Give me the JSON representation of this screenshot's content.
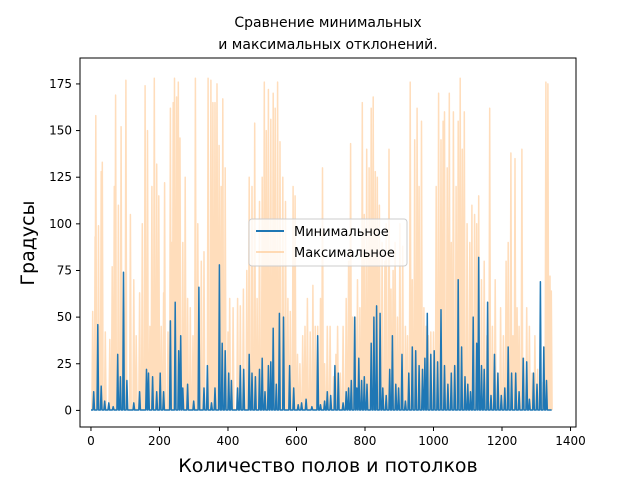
{
  "chart_data": {
    "type": "line",
    "title_line1": "Сравнение минимальных",
    "title_line2": "и максимальных отклонений.",
    "xlabel": "Количество полов и потолков",
    "ylabel": "Градусы",
    "xlim": [
      -32,
      1416
    ],
    "ylim": [
      -8.9,
      188.9
    ],
    "xticks": [
      0,
      200,
      400,
      600,
      800,
      1000,
      1200,
      1400
    ],
    "yticks": [
      0,
      25,
      50,
      75,
      100,
      125,
      150,
      175
    ],
    "legend_position": "center",
    "series": [
      {
        "name": "Минимальное",
        "color": "#1f77b4",
        "alpha": 1.0
      },
      {
        "name": "Максимальное",
        "color": "#ffbb78",
        "alpha": 0.5
      }
    ],
    "max_peaks": [
      [
        5,
        53
      ],
      [
        12,
        93
      ],
      [
        14,
        158
      ],
      [
        22,
        99
      ],
      [
        25,
        45
      ],
      [
        30,
        128
      ],
      [
        33,
        133
      ],
      [
        42,
        42
      ],
      [
        55,
        38
      ],
      [
        62,
        77
      ],
      [
        68,
        120
      ],
      [
        72,
        169
      ],
      [
        80,
        110
      ],
      [
        88,
        152
      ],
      [
        95,
        35
      ],
      [
        102,
        177
      ],
      [
        115,
        105
      ],
      [
        125,
        70
      ],
      [
        132,
        40
      ],
      [
        142,
        63
      ],
      [
        150,
        100
      ],
      [
        158,
        174
      ],
      [
        165,
        150
      ],
      [
        172,
        45
      ],
      [
        178,
        120
      ],
      [
        185,
        178
      ],
      [
        192,
        132
      ],
      [
        198,
        115
      ],
      [
        205,
        45
      ],
      [
        212,
        63
      ],
      [
        215,
        122
      ],
      [
        225,
        42
      ],
      [
        232,
        162
      ],
      [
        236,
        90
      ],
      [
        240,
        165
      ],
      [
        244,
        178
      ],
      [
        250,
        168
      ],
      [
        255,
        176
      ],
      [
        260,
        146
      ],
      [
        268,
        90
      ],
      [
        275,
        125
      ],
      [
        282,
        60
      ],
      [
        290,
        55
      ],
      [
        298,
        40
      ],
      [
        305,
        178
      ],
      [
        312,
        100
      ],
      [
        322,
        80
      ],
      [
        330,
        85
      ],
      [
        342,
        178
      ],
      [
        350,
        177
      ],
      [
        356,
        165
      ],
      [
        362,
        165
      ],
      [
        368,
        175
      ],
      [
        374,
        142
      ],
      [
        380,
        120
      ],
      [
        385,
        167
      ],
      [
        392,
        130
      ],
      [
        400,
        42
      ],
      [
        405,
        60
      ],
      [
        415,
        55
      ],
      [
        428,
        60
      ],
      [
        436,
        56
      ],
      [
        445,
        65
      ],
      [
        455,
        75
      ],
      [
        462,
        125
      ],
      [
        470,
        120
      ],
      [
        478,
        154
      ],
      [
        485,
        60
      ],
      [
        492,
        112
      ],
      [
        500,
        125
      ],
      [
        506,
        176
      ],
      [
        512,
        150
      ],
      [
        518,
        172
      ],
      [
        525,
        156
      ],
      [
        532,
        170
      ],
      [
        538,
        162
      ],
      [
        545,
        176
      ],
      [
        552,
        144
      ],
      [
        560,
        125
      ],
      [
        568,
        112
      ],
      [
        575,
        60
      ],
      [
        582,
        53
      ],
      [
        590,
        120
      ],
      [
        596,
        115
      ],
      [
        603,
        30
      ],
      [
        610,
        25
      ],
      [
        618,
        40
      ],
      [
        625,
        45
      ],
      [
        632,
        60
      ],
      [
        640,
        42
      ],
      [
        648,
        67
      ],
      [
        655,
        45
      ],
      [
        662,
        45
      ],
      [
        670,
        60
      ],
      [
        676,
        130
      ],
      [
        682,
        25
      ],
      [
        690,
        45
      ],
      [
        698,
        45
      ],
      [
        708,
        18
      ],
      [
        715,
        30
      ],
      [
        720,
        45
      ],
      [
        728,
        20
      ],
      [
        736,
        45
      ],
      [
        745,
        60
      ],
      [
        752,
        80
      ],
      [
        758,
        143
      ],
      [
        764,
        50
      ],
      [
        772,
        50
      ],
      [
        778,
        70
      ],
      [
        785,
        55
      ],
      [
        792,
        165
      ],
      [
        798,
        105
      ],
      [
        805,
        140
      ],
      [
        812,
        130
      ],
      [
        818,
        162
      ],
      [
        824,
        168
      ],
      [
        830,
        128
      ],
      [
        836,
        125
      ],
      [
        842,
        110
      ],
      [
        850,
        90
      ],
      [
        858,
        80
      ],
      [
        862,
        100
      ],
      [
        870,
        140
      ],
      [
        876,
        65
      ],
      [
        882,
        75
      ],
      [
        888,
        90
      ],
      [
        895,
        50
      ],
      [
        902,
        100
      ],
      [
        910,
        88
      ],
      [
        918,
        45
      ],
      [
        924,
        40
      ],
      [
        932,
        176
      ],
      [
        938,
        70
      ],
      [
        945,
        145
      ],
      [
        952,
        162
      ],
      [
        958,
        120
      ],
      [
        965,
        155
      ],
      [
        972,
        55
      ],
      [
        978,
        45
      ],
      [
        985,
        40
      ],
      [
        992,
        42
      ],
      [
        1000,
        42
      ],
      [
        1008,
        120
      ],
      [
        1015,
        170
      ],
      [
        1022,
        145
      ],
      [
        1028,
        155
      ],
      [
        1032,
        160
      ],
      [
        1040,
        130
      ],
      [
        1046,
        170
      ],
      [
        1052,
        90
      ],
      [
        1058,
        160
      ],
      [
        1066,
        120
      ],
      [
        1072,
        155
      ],
      [
        1078,
        178
      ],
      [
        1084,
        140
      ],
      [
        1090,
        160
      ],
      [
        1098,
        100
      ],
      [
        1106,
        90
      ],
      [
        1112,
        110
      ],
      [
        1120,
        105
      ],
      [
        1126,
        100
      ],
      [
        1132,
        115
      ],
      [
        1140,
        70
      ],
      [
        1148,
        80
      ],
      [
        1156,
        40
      ],
      [
        1164,
        162
      ],
      [
        1172,
        45
      ],
      [
        1180,
        70
      ],
      [
        1188,
        20
      ],
      [
        1196,
        55
      ],
      [
        1204,
        40
      ],
      [
        1212,
        80
      ],
      [
        1218,
        90
      ],
      [
        1226,
        138
      ],
      [
        1232,
        40
      ],
      [
        1238,
        135
      ],
      [
        1244,
        55
      ],
      [
        1250,
        45
      ],
      [
        1258,
        140
      ],
      [
        1264,
        28
      ],
      [
        1272,
        55
      ],
      [
        1280,
        45
      ],
      [
        1288,
        20
      ],
      [
        1296,
        40
      ],
      [
        1304,
        22
      ],
      [
        1312,
        35
      ],
      [
        1320,
        15
      ],
      [
        1328,
        176
      ],
      [
        1334,
        175
      ],
      [
        1340,
        72
      ],
      [
        1344,
        64
      ]
    ],
    "min_peaks": [
      [
        8,
        10
      ],
      [
        20,
        46
      ],
      [
        30,
        13
      ],
      [
        40,
        5
      ],
      [
        52,
        4
      ],
      [
        65,
        2
      ],
      [
        78,
        30
      ],
      [
        86,
        18
      ],
      [
        95,
        74
      ],
      [
        105,
        16
      ],
      [
        125,
        4
      ],
      [
        142,
        10
      ],
      [
        162,
        22
      ],
      [
        168,
        20
      ],
      [
        180,
        18
      ],
      [
        192,
        10
      ],
      [
        202,
        20
      ],
      [
        212,
        10
      ],
      [
        232,
        48
      ],
      [
        246,
        58
      ],
      [
        256,
        32
      ],
      [
        262,
        40
      ],
      [
        268,
        12
      ],
      [
        282,
        14
      ],
      [
        300,
        5
      ],
      [
        315,
        66
      ],
      [
        330,
        12
      ],
      [
        340,
        24
      ],
      [
        352,
        4
      ],
      [
        362,
        12
      ],
      [
        375,
        78
      ],
      [
        383,
        36
      ],
      [
        392,
        32
      ],
      [
        402,
        20
      ],
      [
        410,
        16
      ],
      [
        428,
        12
      ],
      [
        436,
        24
      ],
      [
        446,
        22
      ],
      [
        462,
        30
      ],
      [
        470,
        20
      ],
      [
        480,
        18
      ],
      [
        492,
        22
      ],
      [
        500,
        28
      ],
      [
        508,
        10
      ],
      [
        518,
        24
      ],
      [
        525,
        26
      ],
      [
        532,
        44
      ],
      [
        541,
        14
      ],
      [
        550,
        52
      ],
      [
        562,
        50
      ],
      [
        580,
        24
      ],
      [
        592,
        12
      ],
      [
        605,
        3
      ],
      [
        615,
        4
      ],
      [
        628,
        6
      ],
      [
        645,
        2
      ],
      [
        662,
        40
      ],
      [
        670,
        3
      ],
      [
        682,
        5
      ],
      [
        690,
        10
      ],
      [
        700,
        8
      ],
      [
        712,
        24
      ],
      [
        722,
        20
      ],
      [
        736,
        4
      ],
      [
        745,
        10
      ],
      [
        752,
        12
      ],
      [
        760,
        16
      ],
      [
        770,
        50
      ],
      [
        776,
        12
      ],
      [
        782,
        28
      ],
      [
        790,
        16
      ],
      [
        798,
        18
      ],
      [
        806,
        14
      ],
      [
        818,
        36
      ],
      [
        826,
        50
      ],
      [
        834,
        56
      ],
      [
        844,
        52
      ],
      [
        852,
        12
      ],
      [
        862,
        8
      ],
      [
        872,
        22
      ],
      [
        880,
        40
      ],
      [
        890,
        14
      ],
      [
        898,
        12
      ],
      [
        908,
        30
      ],
      [
        918,
        5
      ],
      [
        928,
        20
      ],
      [
        938,
        34
      ],
      [
        948,
        32
      ],
      [
        958,
        24
      ],
      [
        968,
        22
      ],
      [
        975,
        28
      ],
      [
        982,
        52
      ],
      [
        992,
        30
      ],
      [
        1002,
        32
      ],
      [
        1012,
        26
      ],
      [
        1022,
        54
      ],
      [
        1032,
        24
      ],
      [
        1042,
        14
      ],
      [
        1052,
        20
      ],
      [
        1062,
        24
      ],
      [
        1072,
        70
      ],
      [
        1082,
        34
      ],
      [
        1092,
        18
      ],
      [
        1100,
        14
      ],
      [
        1108,
        10
      ],
      [
        1116,
        50
      ],
      [
        1126,
        36
      ],
      [
        1132,
        82
      ],
      [
        1140,
        24
      ],
      [
        1148,
        22
      ],
      [
        1158,
        58
      ],
      [
        1168,
        8
      ],
      [
        1178,
        30
      ],
      [
        1188,
        20
      ],
      [
        1198,
        8
      ],
      [
        1208,
        12
      ],
      [
        1218,
        34
      ],
      [
        1228,
        20
      ],
      [
        1240,
        20
      ],
      [
        1250,
        10
      ],
      [
        1262,
        28
      ],
      [
        1272,
        26
      ],
      [
        1280,
        6
      ],
      [
        1292,
        20
      ],
      [
        1302,
        14
      ],
      [
        1312,
        69
      ],
      [
        1322,
        34
      ],
      [
        1330,
        16
      ]
    ]
  }
}
